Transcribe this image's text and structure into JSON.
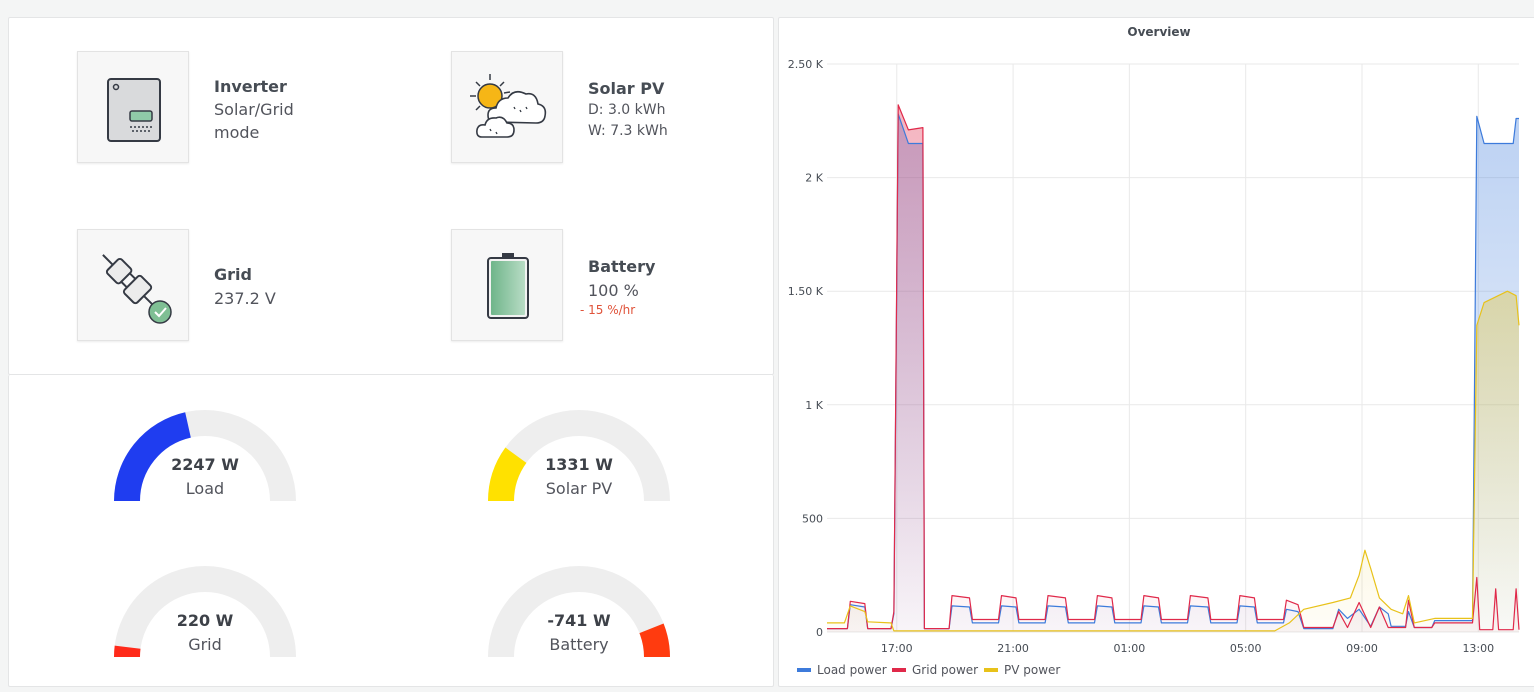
{
  "status_tiles": {
    "inverter": {
      "title": "Inverter",
      "line1": "Solar/Grid",
      "line2": "mode"
    },
    "solar": {
      "title": "Solar PV",
      "line1": "D: 3.0 kWh",
      "line2": "W: 7.3 kWh"
    },
    "grid": {
      "title": "Grid",
      "line1": "237.2 V"
    },
    "battery": {
      "title": "Battery",
      "line1": "100 %",
      "rate": "- 15 %/hr",
      "level": 1.0
    }
  },
  "gauges": {
    "load": {
      "value": "2247 W",
      "label": "Load",
      "fill": 0.43,
      "color": "#1f3df0"
    },
    "solar": {
      "value": "1331 W",
      "label": "Solar PV",
      "fill": 0.2,
      "color": "#ffe100"
    },
    "grid": {
      "value": "220 W",
      "label": "Grid",
      "fill": 0.04,
      "color": "#ff2a1a"
    },
    "battery": {
      "value": "-741 W",
      "label": "Battery",
      "fill": 0.12,
      "color": "#ff3b0f",
      "direction": "right"
    }
  },
  "chart_data": {
    "type": "area",
    "title": "Overview",
    "x_ticks": [
      "17:00",
      "21:00",
      "01:00",
      "05:00",
      "09:00",
      "13:00"
    ],
    "x_hours": [
      17,
      21,
      25,
      29,
      33,
      37
    ],
    "x_range": [
      14.6,
      38.4
    ],
    "y_ticks": [
      "0",
      "500",
      "1 K",
      "1.50 K",
      "2 K",
      "2.50 K"
    ],
    "y_tick_values": [
      0,
      500,
      1000,
      1500,
      2000,
      2500
    ],
    "ylim": [
      0,
      2500
    ],
    "legend_position": "bottom-left",
    "series": [
      {
        "name": "Load power",
        "color": "#3d7bdb",
        "points": [
          [
            14.6,
            15
          ],
          [
            15.3,
            15
          ],
          [
            15.4,
            120
          ],
          [
            15.9,
            110
          ],
          [
            16.0,
            15
          ],
          [
            16.8,
            15
          ],
          [
            16.9,
            80
          ],
          [
            17.05,
            2280
          ],
          [
            17.4,
            2150
          ],
          [
            17.9,
            2150
          ],
          [
            17.95,
            15
          ],
          [
            18.8,
            15
          ],
          [
            18.9,
            115
          ],
          [
            19.5,
            110
          ],
          [
            19.6,
            40
          ],
          [
            20.5,
            40
          ],
          [
            20.6,
            115
          ],
          [
            21.1,
            110
          ],
          [
            21.2,
            40
          ],
          [
            22.1,
            40
          ],
          [
            22.2,
            115
          ],
          [
            22.8,
            110
          ],
          [
            22.9,
            40
          ],
          [
            23.8,
            40
          ],
          [
            23.9,
            115
          ],
          [
            24.4,
            110
          ],
          [
            24.5,
            40
          ],
          [
            25.4,
            40
          ],
          [
            25.5,
            115
          ],
          [
            26.0,
            110
          ],
          [
            26.1,
            40
          ],
          [
            27.0,
            40
          ],
          [
            27.1,
            115
          ],
          [
            27.7,
            110
          ],
          [
            27.8,
            40
          ],
          [
            28.7,
            40
          ],
          [
            28.8,
            115
          ],
          [
            29.3,
            110
          ],
          [
            29.4,
            40
          ],
          [
            30.3,
            40
          ],
          [
            30.4,
            100
          ],
          [
            30.8,
            90
          ],
          [
            31.0,
            15
          ],
          [
            32.0,
            15
          ],
          [
            32.2,
            100
          ],
          [
            32.5,
            60
          ],
          [
            32.9,
            100
          ],
          [
            33.3,
            25
          ],
          [
            33.6,
            110
          ],
          [
            33.9,
            80
          ],
          [
            34.0,
            25
          ],
          [
            34.5,
            25
          ],
          [
            34.6,
            90
          ],
          [
            34.8,
            20
          ],
          [
            35.4,
            20
          ],
          [
            35.5,
            50
          ],
          [
            36.8,
            50
          ],
          [
            36.95,
            2270
          ],
          [
            37.2,
            2150
          ],
          [
            38.2,
            2150
          ],
          [
            38.3,
            2260
          ],
          [
            38.4,
            2260
          ]
        ]
      },
      {
        "name": "Grid power",
        "color": "#e0294a",
        "points": [
          [
            14.6,
            15
          ],
          [
            15.3,
            15
          ],
          [
            15.4,
            135
          ],
          [
            15.9,
            125
          ],
          [
            16.0,
            15
          ],
          [
            16.8,
            15
          ],
          [
            16.9,
            90
          ],
          [
            17.05,
            2320
          ],
          [
            17.4,
            2210
          ],
          [
            17.9,
            2220
          ],
          [
            17.95,
            15
          ],
          [
            18.8,
            15
          ],
          [
            18.9,
            160
          ],
          [
            19.5,
            150
          ],
          [
            19.6,
            55
          ],
          [
            20.5,
            55
          ],
          [
            20.6,
            160
          ],
          [
            21.1,
            150
          ],
          [
            21.2,
            55
          ],
          [
            22.1,
            55
          ],
          [
            22.2,
            160
          ],
          [
            22.8,
            150
          ],
          [
            22.9,
            55
          ],
          [
            23.8,
            55
          ],
          [
            23.9,
            160
          ],
          [
            24.4,
            150
          ],
          [
            24.5,
            55
          ],
          [
            25.4,
            55
          ],
          [
            25.5,
            160
          ],
          [
            26.0,
            150
          ],
          [
            26.1,
            55
          ],
          [
            27.0,
            55
          ],
          [
            27.1,
            160
          ],
          [
            27.7,
            150
          ],
          [
            27.8,
            55
          ],
          [
            28.7,
            55
          ],
          [
            28.8,
            160
          ],
          [
            29.3,
            150
          ],
          [
            29.4,
            55
          ],
          [
            30.3,
            55
          ],
          [
            30.4,
            140
          ],
          [
            30.8,
            120
          ],
          [
            31.0,
            20
          ],
          [
            32.0,
            20
          ],
          [
            32.2,
            90
          ],
          [
            32.5,
            20
          ],
          [
            32.9,
            130
          ],
          [
            33.3,
            20
          ],
          [
            33.6,
            110
          ],
          [
            33.9,
            20
          ],
          [
            34.5,
            20
          ],
          [
            34.6,
            140
          ],
          [
            34.8,
            20
          ],
          [
            35.4,
            20
          ],
          [
            35.5,
            40
          ],
          [
            36.8,
            40
          ],
          [
            36.95,
            240
          ],
          [
            37.05,
            10
          ],
          [
            37.5,
            10
          ],
          [
            37.6,
            190
          ],
          [
            37.7,
            10
          ],
          [
            38.2,
            10
          ],
          [
            38.3,
            190
          ],
          [
            38.4,
            10
          ]
        ]
      },
      {
        "name": "PV power",
        "color": "#e8c21a",
        "points": [
          [
            14.6,
            40
          ],
          [
            15.2,
            40
          ],
          [
            15.4,
            115
          ],
          [
            15.9,
            90
          ],
          [
            16.0,
            45
          ],
          [
            16.8,
            40
          ],
          [
            16.9,
            5
          ],
          [
            18.0,
            5
          ],
          [
            30.0,
            5
          ],
          [
            30.5,
            40
          ],
          [
            31.0,
            100
          ],
          [
            32.0,
            130
          ],
          [
            32.6,
            150
          ],
          [
            32.9,
            250
          ],
          [
            33.1,
            360
          ],
          [
            33.3,
            280
          ],
          [
            33.6,
            150
          ],
          [
            34.0,
            100
          ],
          [
            34.4,
            80
          ],
          [
            34.6,
            160
          ],
          [
            34.8,
            40
          ],
          [
            35.5,
            60
          ],
          [
            36.8,
            60
          ],
          [
            36.95,
            1350
          ],
          [
            37.2,
            1450
          ],
          [
            38.0,
            1500
          ],
          [
            38.3,
            1480
          ],
          [
            38.4,
            1350
          ]
        ]
      }
    ]
  }
}
